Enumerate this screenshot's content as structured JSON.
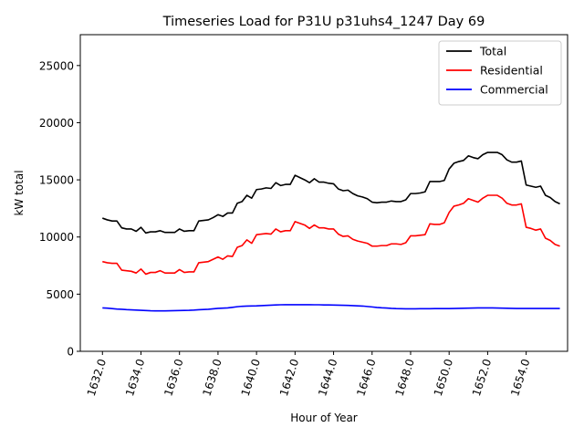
{
  "chart_data": {
    "type": "line",
    "title": "Timeseries Load for P31U p31uhs4_1247  Day 69",
    "xlabel": "Hour of Year",
    "ylabel": "kW total",
    "xlim": [
      1630.85,
      1656.15
    ],
    "ylim": [
      0,
      27700
    ],
    "x_ticks": [
      1632,
      1634,
      1636,
      1638,
      1640,
      1642,
      1644,
      1646,
      1648,
      1650,
      1652,
      1654
    ],
    "x_tick_labels": [
      "1632.0",
      "1634.0",
      "1636.0",
      "1638.0",
      "1640.0",
      "1642.0",
      "1644.0",
      "1646.0",
      "1648.0",
      "1650.0",
      "1652.0",
      "1654.0"
    ],
    "y_ticks": [
      0,
      5000,
      10000,
      15000,
      20000,
      25000
    ],
    "y_tick_labels": [
      "0",
      "5000",
      "10000",
      "15000",
      "20000",
      "25000"
    ],
    "x_start": 1632,
    "x_step": 0.25,
    "legend_position": "top-right",
    "series": [
      {
        "name": "Total",
        "color": "#000000",
        "values": [
          11650,
          11500,
          11400,
          11400,
          10800,
          10700,
          10700,
          10500,
          10850,
          10350,
          10450,
          10450,
          10550,
          10400,
          10400,
          10400,
          10700,
          10500,
          10550,
          10550,
          11400,
          11450,
          11500,
          11700,
          11950,
          11800,
          12100,
          12100,
          12950,
          13100,
          13650,
          13400,
          14150,
          14200,
          14300,
          14250,
          14750,
          14500,
          14600,
          14600,
          15400,
          15200,
          15000,
          14750,
          15100,
          14800,
          14800,
          14700,
          14650,
          14200,
          14050,
          14100,
          13800,
          13600,
          13500,
          13350,
          13050,
          13000,
          13050,
          13050,
          13150,
          13100,
          13100,
          13250,
          13800,
          13800,
          13850,
          13950,
          14850,
          14850,
          14850,
          14950,
          15950,
          16450,
          16600,
          16700,
          17100,
          16950,
          16850,
          17200,
          17400,
          17400,
          17400,
          17200,
          16750,
          16550,
          16550,
          16650,
          14550,
          14450,
          14350,
          14450,
          13650,
          13450,
          13100,
          12900
        ]
      },
      {
        "name": "Residential",
        "color": "#ff0000",
        "values": [
          7850,
          7750,
          7700,
          7700,
          7100,
          7050,
          7000,
          6850,
          7200,
          6750,
          6900,
          6900,
          7050,
          6850,
          6850,
          6850,
          7150,
          6900,
          6950,
          6950,
          7750,
          7800,
          7850,
          8050,
          8250,
          8050,
          8350,
          8300,
          9100,
          9250,
          9750,
          9450,
          10200,
          10250,
          10300,
          10250,
          10700,
          10450,
          10550,
          10550,
          11350,
          11200,
          11050,
          10750,
          11050,
          10800,
          10800,
          10700,
          10700,
          10250,
          10050,
          10100,
          9800,
          9650,
          9550,
          9450,
          9200,
          9200,
          9250,
          9250,
          9400,
          9400,
          9350,
          9500,
          10100,
          10100,
          10150,
          10200,
          11150,
          11100,
          11100,
          11250,
          12150,
          12700,
          12800,
          12950,
          13350,
          13200,
          13050,
          13400,
          13650,
          13650,
          13650,
          13400,
          12950,
          12800,
          12800,
          12900,
          10850,
          10750,
          10600,
          10700,
          9900,
          9700,
          9350,
          9200
        ]
      },
      {
        "name": "Commercial",
        "color": "#0000ff",
        "values": [
          3800,
          3780,
          3740,
          3700,
          3680,
          3650,
          3630,
          3610,
          3590,
          3570,
          3550,
          3540,
          3540,
          3540,
          3550,
          3560,
          3570,
          3580,
          3590,
          3610,
          3640,
          3660,
          3680,
          3720,
          3760,
          3780,
          3800,
          3850,
          3900,
          3940,
          3960,
          3970,
          3980,
          4000,
          4020,
          4040,
          4060,
          4070,
          4080,
          4080,
          4080,
          4080,
          4080,
          4080,
          4070,
          4070,
          4060,
          4060,
          4050,
          4040,
          4030,
          4020,
          4000,
          3980,
          3960,
          3920,
          3880,
          3840,
          3810,
          3790,
          3760,
          3740,
          3730,
          3720,
          3720,
          3720,
          3730,
          3730,
          3730,
          3740,
          3740,
          3740,
          3740,
          3750,
          3760,
          3770,
          3780,
          3790,
          3800,
          3800,
          3800,
          3800,
          3790,
          3780,
          3770,
          3760,
          3750,
          3750,
          3750,
          3750,
          3750,
          3750,
          3750,
          3750,
          3750,
          3750
        ]
      }
    ]
  }
}
